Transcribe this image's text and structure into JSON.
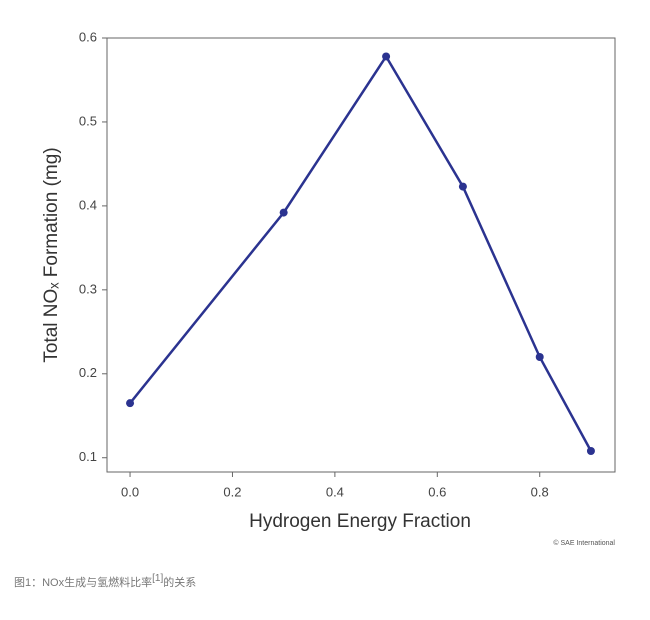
{
  "chart_data": {
    "type": "line",
    "x_label": "Hydrogen Energy Fraction",
    "y_label": "Total NOₓ Formation (mg)",
    "x": [
      0.0,
      0.3,
      0.5,
      0.65,
      0.8,
      0.9
    ],
    "series": [
      {
        "color": "#2b3390",
        "values": [
          0.165,
          0.392,
          0.578,
          0.423,
          0.22,
          0.108
        ]
      }
    ],
    "xlim": [
      -0.045,
      0.947
    ],
    "xticks": [
      {
        "value": 0,
        "label": "0.0"
      },
      0.2,
      0.4,
      0.6,
      0.8
    ],
    "ylim": [
      0.083,
      0.6
    ],
    "yticks": [
      0.1,
      0.2,
      0.3,
      0.4,
      0.5,
      0.6
    ],
    "grid": false
  },
  "credit": "© SAE International",
  "caption": [
    "图1：NOx生成与氢燃料比率",
    "[1]",
    "的关系"
  ]
}
